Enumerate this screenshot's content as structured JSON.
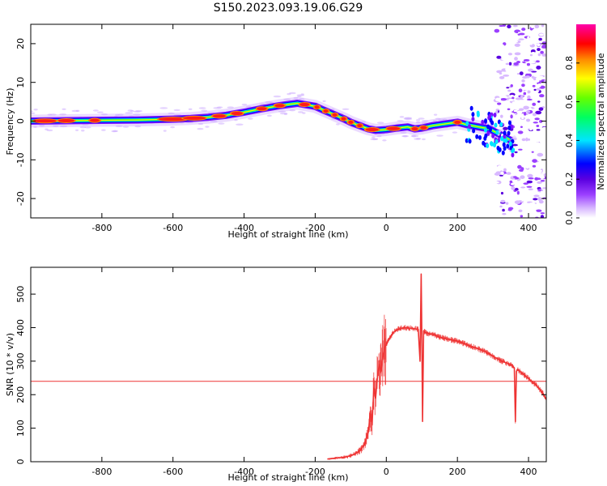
{
  "figure_title": "S150.2023.093.19.06.G29",
  "chart_data": [
    {
      "type": "heatmap",
      "panel": "spectrogram",
      "xlabel": "Height of straight line (km)",
      "ylabel": "Frequency (Hz)",
      "xlim": [
        -1000,
        450
      ],
      "ylim": [
        -25,
        25
      ],
      "x_ticks": [
        -800,
        -600,
        -400,
        -200,
        0,
        200,
        400
      ],
      "y_ticks": [
        -20,
        -10,
        0,
        10,
        20
      ],
      "colorbar": {
        "label": "Normalized spectral amplitude",
        "range": [
          0,
          1
        ],
        "ticks": [
          0.0,
          0.2,
          0.4,
          0.6,
          0.8
        ],
        "colormap": [
          "#ffffff",
          "#d8b8ff",
          "#9b40ff",
          "#5a00e0",
          "#0000ff",
          "#00e5ff",
          "#00ff60",
          "#66ff00",
          "#ffff00",
          "#ff8800",
          "#ff0000",
          "#ff00aa"
        ]
      },
      "ridge": {
        "x": [
          -1000,
          -900,
          -800,
          -700,
          -600,
          -550,
          -500,
          -450,
          -400,
          -350,
          -300,
          -250,
          -200,
          -180,
          -150,
          -120,
          -100,
          -80,
          -50,
          -30,
          0,
          30,
          60,
          80,
          100,
          130,
          160,
          200,
          230,
          260,
          290,
          320,
          350
        ],
        "y": [
          0,
          0.1,
          0.2,
          0.3,
          0.5,
          0.7,
          1.0,
          1.5,
          2.3,
          3.2,
          4.0,
          4.6,
          3.8,
          3.0,
          1.8,
          0.6,
          -0.3,
          -1.0,
          -2.0,
          -2.4,
          -2.2,
          -1.8,
          -1.5,
          -2.0,
          -1.8,
          -1.2,
          -0.8,
          -0.3,
          -1.0,
          -1.5,
          -2.0,
          -3.5,
          -5.0
        ]
      }
    },
    {
      "type": "line",
      "panel": "snr",
      "xlabel": "Height of straight line (km)",
      "ylabel": "SNR (10 * v/v)",
      "xlim": [
        -1000,
        450
      ],
      "ylim": [
        0,
        580
      ],
      "x_ticks": [
        -800,
        -600,
        -400,
        -200,
        0,
        200,
        400
      ],
      "y_ticks": [
        0,
        100,
        200,
        300,
        400,
        500
      ],
      "threshold": 240,
      "line_color": "#ee3333",
      "series": [
        {
          "x": [
            -165,
            -150,
            -130,
            -110,
            -90,
            -80,
            -70,
            -60,
            -50,
            -45,
            -40,
            -35,
            -30,
            -25,
            -20,
            -15,
            -10,
            -5,
            0,
            10,
            20,
            30,
            50,
            70,
            90,
            95,
            98,
            100,
            102,
            105,
            110,
            130,
            150,
            175,
            200,
            225,
            250,
            275,
            300,
            325,
            350,
            360,
            363,
            366,
            370,
            380,
            400,
            420,
            440,
            450
          ],
          "y": [
            8,
            10,
            12,
            15,
            22,
            28,
            38,
            55,
            90,
            150,
            110,
            220,
            190,
            250,
            290,
            270,
            310,
            340,
            350,
            370,
            385,
            395,
            400,
            398,
            395,
            300,
            560,
            380,
            120,
            390,
            385,
            380,
            372,
            365,
            360,
            350,
            340,
            330,
            315,
            300,
            290,
            280,
            120,
            270,
            275,
            265,
            248,
            230,
            205,
            185
          ]
        }
      ]
    }
  ]
}
